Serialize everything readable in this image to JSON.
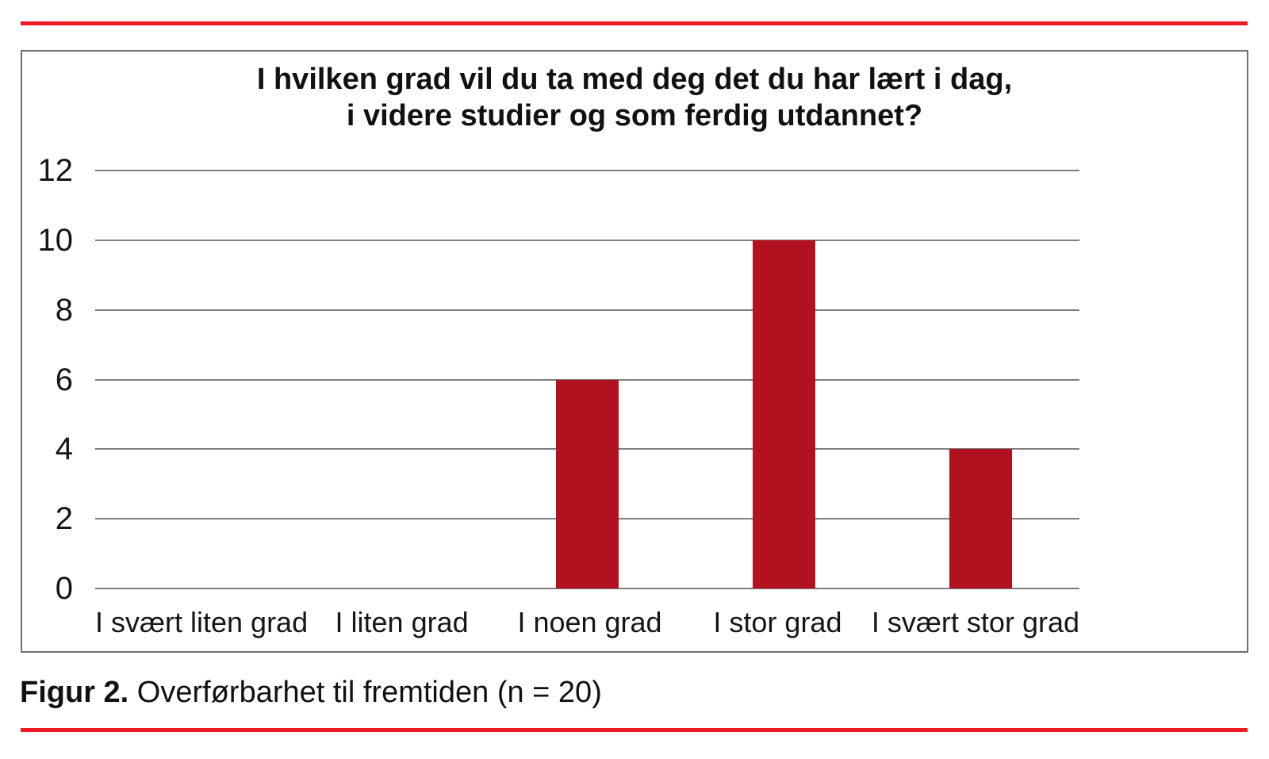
{
  "figure": {
    "rule_color": "#ed1c24",
    "caption_label": "Figur 2.",
    "caption_text": "Overførbarhet til fremtiden (n = 20)"
  },
  "chart_data": {
    "type": "bar",
    "title": "I hvilken grad vil du ta med deg det du har lært i dag, i videre studier og som ferdig utdannet?",
    "title_lines": [
      "I hvilken grad vil du ta med deg det du har lært i dag,",
      "i videre studier og som ferdig utdannet?"
    ],
    "categories": [
      "I svært liten grad",
      "I liten grad",
      "I noen grad",
      "I stor grad",
      "I svært stor grad"
    ],
    "values": [
      0,
      0,
      6,
      10,
      4
    ],
    "y_ticks": [
      0,
      2,
      4,
      6,
      8,
      10,
      12
    ],
    "ylim": [
      0,
      12
    ],
    "xlabel": "",
    "ylabel": "",
    "grid": true,
    "legend": false,
    "bar_color": "#b21120",
    "gridline_color": "#7f7f7f"
  }
}
